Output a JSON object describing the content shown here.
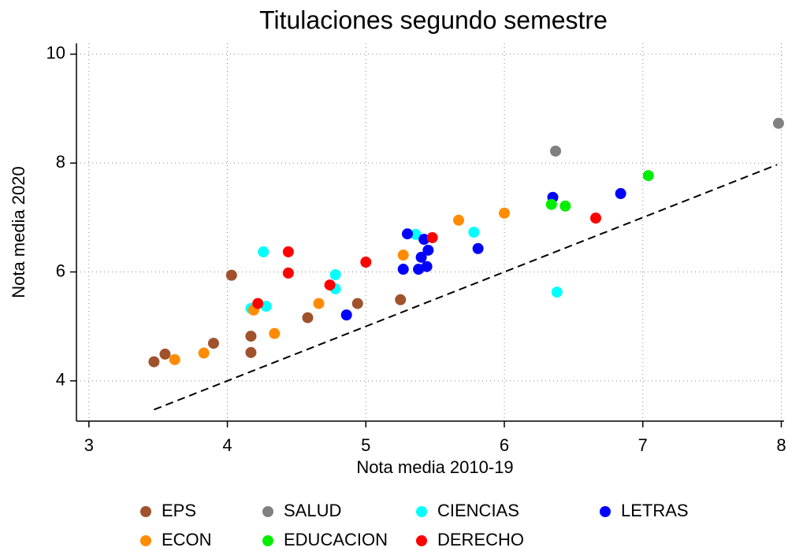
{
  "chart_data": {
    "type": "scatter",
    "title": "Titulaciones segundo semestre",
    "x_label": "Nota media 2010-19",
    "y_label": "Nota media 2020",
    "xlim": [
      2.91,
      8.02
    ],
    "ylim": [
      3.26,
      10.2
    ],
    "xticks": [
      3,
      4,
      5,
      6,
      7,
      8
    ],
    "yticks": [
      4,
      6,
      8,
      10
    ],
    "grid": true,
    "legend": "bottom",
    "reference_line": {
      "x": [
        3.47,
        7.97
      ],
      "y": [
        3.47,
        7.97
      ],
      "color": "#000000"
    },
    "series": [
      {
        "name": "EPS",
        "color": "#a0522d",
        "x": [
          3.47,
          3.55,
          3.9,
          4.03,
          4.17,
          4.17,
          4.58,
          4.94,
          5.25
        ],
        "values": [
          4.35,
          4.49,
          4.69,
          5.94,
          4.82,
          4.52,
          5.16,
          5.42,
          5.49
        ]
      },
      {
        "name": "SALUD",
        "color": "#808080",
        "x": [
          6.37,
          7.98
        ],
        "values": [
          8.22,
          8.73
        ]
      },
      {
        "name": "CIENCIAS",
        "color": "#00ffff",
        "x": [
          4.26,
          4.17,
          4.28,
          4.78,
          4.78,
          5.36,
          5.78,
          6.38
        ],
        "values": [
          6.37,
          5.33,
          5.37,
          5.95,
          5.69,
          6.69,
          6.73,
          5.63
        ]
      },
      {
        "name": "LETRAS",
        "color": "#0000ff",
        "x": [
          4.86,
          5.3,
          5.27,
          5.38,
          5.44,
          5.4,
          5.42,
          5.45,
          5.81,
          6.35,
          6.84
        ],
        "values": [
          5.21,
          6.7,
          6.05,
          6.05,
          6.1,
          6.27,
          6.6,
          6.4,
          6.43,
          7.37,
          7.44
        ]
      },
      {
        "name": "ECON",
        "color": "#ff8c00",
        "x": [
          3.62,
          3.83,
          4.19,
          4.34,
          4.66,
          5.27,
          5.67,
          6.0
        ],
        "values": [
          4.39,
          4.51,
          5.3,
          4.87,
          5.42,
          6.31,
          6.95,
          7.08
        ]
      },
      {
        "name": "EDUCACION",
        "color": "#00ee00",
        "x": [
          6.34,
          6.44,
          7.04
        ],
        "values": [
          7.24,
          7.21,
          7.77
        ]
      },
      {
        "name": "DERECHO",
        "color": "#ff0000",
        "x": [
          4.22,
          4.44,
          4.44,
          4.74,
          5.0,
          5.48,
          6.66
        ],
        "values": [
          5.42,
          6.37,
          5.98,
          5.76,
          6.18,
          6.63,
          6.99
        ]
      }
    ]
  }
}
